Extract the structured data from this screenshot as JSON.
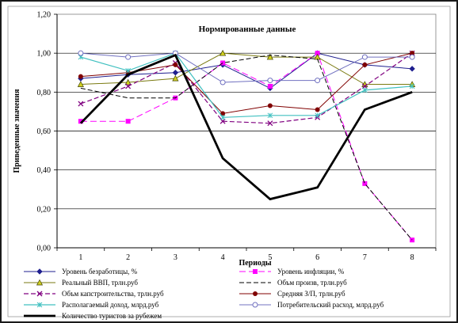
{
  "chart_data": {
    "type": "line",
    "title": "Нормированные данные",
    "xlabel": "Периоды",
    "ylabel": "Приведенные значения",
    "categories": [
      "1",
      "2",
      "3",
      "4",
      "5",
      "6",
      "7",
      "8"
    ],
    "ylim": [
      0,
      1.2
    ],
    "yticks": [
      "0,00",
      "0,20",
      "0,40",
      "0,60",
      "0,80",
      "1,00",
      "1,20"
    ],
    "grid": true,
    "legend_position": "bottom",
    "series": [
      {
        "name": "Уровень безработицы, %",
        "values": [
          0.87,
          0.89,
          0.9,
          0.94,
          0.82,
          1.0,
          0.94,
          0.92
        ],
        "color": "#1f1f8f",
        "marker": "diamond",
        "dash": "",
        "width": 1
      },
      {
        "name": "Уровень инфляции, %",
        "values": [
          0.65,
          0.65,
          0.77,
          0.95,
          0.83,
          1.0,
          0.33,
          0.04
        ],
        "color": "#ff00ff",
        "marker": "square",
        "dash": "8,4",
        "width": 1
      },
      {
        "name": "Реальный ВВП, трлн.руб",
        "values": [
          0.84,
          0.85,
          0.87,
          1.0,
          0.98,
          0.98,
          0.84,
          0.84
        ],
        "color": "#7a7a10",
        "marker": "triangle",
        "dash": "",
        "width": 1
      },
      {
        "name": "Объм произв, трлн.руб",
        "values": [
          0.82,
          0.77,
          0.77,
          0.95,
          0.99,
          0.97,
          0.33,
          0.04
        ],
        "color": "#000000",
        "marker": "none",
        "dash": "6,3",
        "width": 1
      },
      {
        "name": "Объм капстроительства, трлн.руб",
        "values": [
          0.74,
          0.83,
          0.95,
          0.65,
          0.64,
          0.67,
          0.83,
          1.0
        ],
        "color": "#800080",
        "marker": "x",
        "dash": "6,3",
        "width": 1.2
      },
      {
        "name": "Средняя З/П, трлн.руб",
        "values": [
          0.88,
          0.9,
          0.94,
          0.69,
          0.73,
          0.71,
          0.94,
          1.0
        ],
        "color": "#800000",
        "marker": "circle",
        "dash": "",
        "width": 1
      },
      {
        "name": "Располагаемый доход, млрд.руб",
        "values": [
          0.98,
          0.91,
          1.0,
          0.67,
          0.68,
          0.68,
          0.81,
          0.83
        ],
        "color": "#40c0c0",
        "marker": "star",
        "dash": "",
        "width": 1.2
      },
      {
        "name": "Потребительский расход, млрд.руб",
        "values": [
          1.0,
          0.98,
          1.0,
          0.85,
          0.86,
          0.86,
          0.98,
          0.98
        ],
        "color": "#7070c0",
        "marker": "circle-open",
        "dash": "",
        "width": 1
      },
      {
        "name": "Количество туристов за рубежем",
        "values": [
          0.64,
          0.89,
          0.99,
          0.46,
          0.25,
          0.31,
          0.71,
          0.8
        ],
        "color": "#000000",
        "marker": "none",
        "dash": "",
        "width": 2.8
      }
    ]
  }
}
